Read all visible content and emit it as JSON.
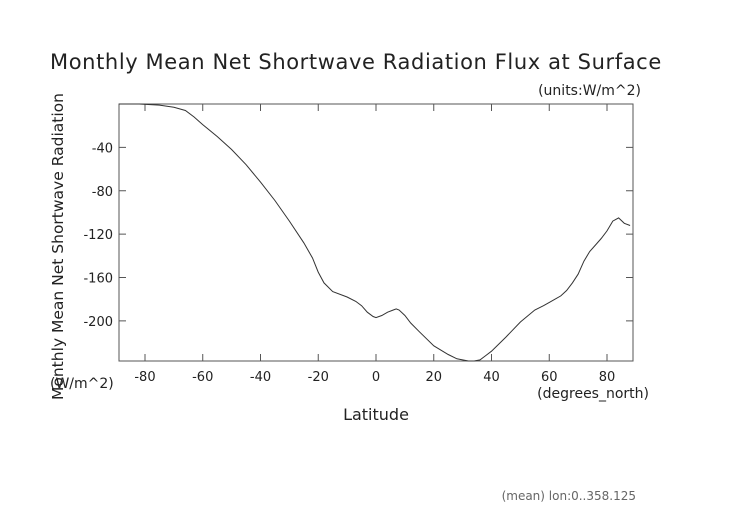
{
  "title": "Monthly Mean Net Shortwave Radiation Flux at Surface",
  "units_note": "(units:W/m^2)",
  "ylabel": "Monthly Mean Net Shortwave Radiation",
  "yunits": "(W/m^2)",
  "xlabel": "Latitude",
  "xunits": "(degrees_north)",
  "footer": "(mean) lon:0..358.125",
  "chart_data": {
    "type": "line",
    "title": "Monthly Mean Net Shortwave Radiation Flux at Surface",
    "xlabel": "Latitude",
    "ylabel": "Monthly Mean Net Shortwave Radiation",
    "xlim": [
      -89,
      89
    ],
    "ylim": [
      -237,
      0
    ],
    "xticks": [
      -80,
      -60,
      -40,
      -20,
      0,
      20,
      40,
      60,
      80
    ],
    "yticks": [
      -40,
      -80,
      -120,
      -160,
      -200
    ],
    "grid": false,
    "series": [
      {
        "x": [
          -89,
          -82,
          -75,
          -70,
          -66,
          -63,
          -60,
          -55,
          -50,
          -45,
          -40,
          -35,
          -30,
          -25,
          -22,
          -20,
          -18,
          -15,
          -10,
          -7,
          -5,
          -3,
          -1,
          0,
          2,
          4,
          6,
          7,
          8,
          10,
          12,
          15,
          20,
          25,
          28,
          30,
          32,
          34,
          36,
          38,
          40,
          45,
          50,
          55,
          58,
          60,
          62,
          64,
          66,
          68,
          70,
          72,
          74,
          76,
          78,
          80,
          82,
          84,
          86,
          88
        ],
        "y": [
          0,
          0,
          -1,
          -3,
          -6,
          -12,
          -19,
          -30,
          -42,
          -56,
          -72,
          -89,
          -108,
          -128,
          -142,
          -155,
          -165,
          -173,
          -178,
          -182,
          -186,
          -192,
          -196,
          -197,
          -195,
          -192,
          -190,
          -189,
          -190,
          -195,
          -202,
          -210,
          -223,
          -231,
          -235,
          -236,
          -237,
          -237,
          -236,
          -232,
          -228,
          -215,
          -201,
          -190,
          -186,
          -183,
          -180,
          -177,
          -172,
          -165,
          -157,
          -145,
          -136,
          -130,
          -124,
          -117,
          -108,
          -105,
          -110,
          -112
        ]
      }
    ]
  }
}
